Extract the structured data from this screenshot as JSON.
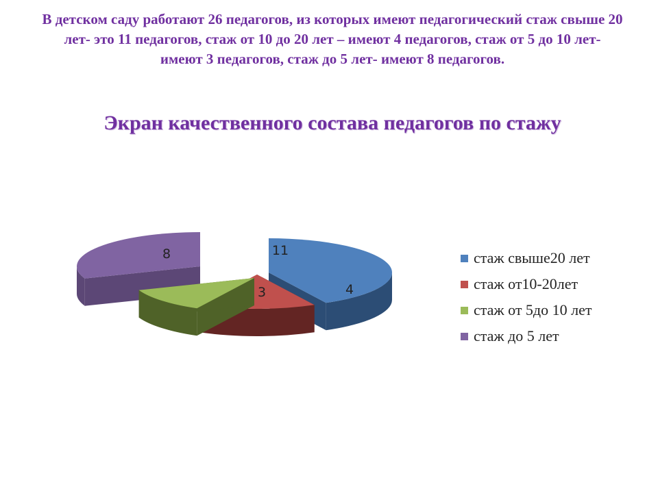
{
  "slide": {
    "intro_text": "В детском саду  работают 26 педагогов, из которых имеют педагогический стаж свыше 20 лет- это 11 педагогов, стаж от 10 до 20 лет – имеют 4 педагогов, стаж от 5 до 10 лет- имеют 3 педагогов, стаж до 5 лет- имеют 8 педагогов."
  },
  "chart_data": {
    "type": "pie",
    "title": "Экран качественного  состава  педагогов по стажу",
    "exploded": true,
    "three_d": true,
    "legend_position": "right",
    "slices": [
      {
        "label": "стаж свыше20 лет",
        "value": 11,
        "color": "#4f81bd",
        "side_color": "#2c4d75"
      },
      {
        "label": "стаж от10-20лет",
        "value": 4,
        "color": "#c0504d",
        "side_color": "#632523"
      },
      {
        "label": "стаж от 5до 10 лет",
        "value": 3,
        "color": "#9bbb59",
        "side_color": "#4f6228"
      },
      {
        "label": "стаж до 5 лет",
        "value": 8,
        "color": "#8064a2",
        "side_color": "#5c4776"
      }
    ]
  }
}
